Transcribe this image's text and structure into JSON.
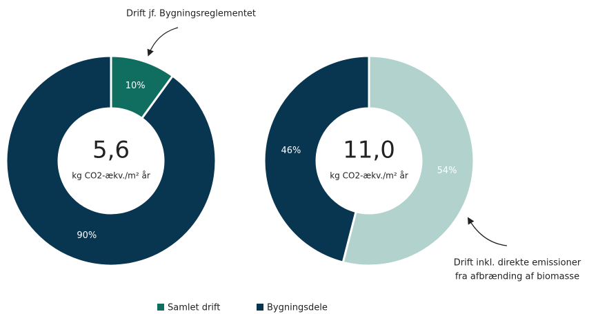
{
  "chart_data": [
    {
      "type": "donut",
      "categories": [
        "Samlet drift",
        "Bygningsdele"
      ],
      "values": [
        10,
        90
      ],
      "value_labels": [
        "10%",
        "90%"
      ],
      "colors": [
        "#0f6e60",
        "#08354f"
      ],
      "center_title": "5,6",
      "center_subtitle": "kg CO2-ækv./m² år",
      "annotation": [
        "Drift jf. Bygningsreglementet"
      ]
    },
    {
      "type": "donut",
      "categories": [
        "Samlet drift",
        "Bygningsdele"
      ],
      "values": [
        54,
        46
      ],
      "value_labels": [
        "54%",
        "46%"
      ],
      "colors": [
        "#b2d3cd",
        "#08354f"
      ],
      "center_title": "11,0",
      "center_subtitle": "kg CO2-ækv./m² år",
      "annotation": [
        "Drift inkl. direkte emissioner",
        "fra afbrænding af biomasse"
      ]
    }
  ]
}
